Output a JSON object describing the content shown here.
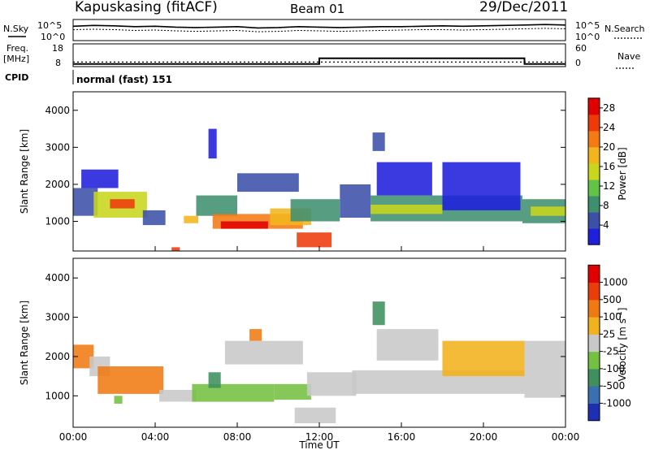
{
  "header": {
    "station": "Kapuskasing (fitACF)",
    "beam": "Beam 01",
    "date": "29/Dec/2011"
  },
  "aux": {
    "nsky_label": "N.Sky",
    "nsearch_label": "N.Search",
    "noise_ticks": [
      "10^5",
      "10^0"
    ],
    "freq_label_1": "Freq.",
    "freq_label_2": "[MHz]",
    "freq_ticks": [
      "18",
      "8"
    ],
    "nave_label": "Nave",
    "nave_ticks": [
      "60",
      "0"
    ],
    "cpid_label": "CPID",
    "cpid_value": "normal (fast) 151"
  },
  "colors": {
    "power": [
      "#1f1fdc",
      "#3c50a8",
      "#3f8f6f",
      "#62c447",
      "#c8d61e",
      "#f2b51d",
      "#f47a14",
      "#ee3a0b",
      "#e00000"
    ],
    "velocity": [
      "#1f2fb4",
      "#3a6fb0",
      "#3f8f5f",
      "#74c040",
      "#c8c8c8",
      "#f2b21e",
      "#f07a12",
      "#ea3d0b",
      "#e00000"
    ]
  },
  "chart_data": [
    {
      "type": "line",
      "panel": "noise",
      "series": [
        {
          "name": "N.Sky",
          "y_log10": [
            3.4,
            3.6,
            3.5,
            3.3,
            3.4,
            3.2,
            3.1,
            3.2,
            3.3,
            3.0,
            3.1,
            3.3,
            3.2,
            3.1,
            3.2,
            3.3,
            3.3,
            3.4,
            3.5,
            3.4,
            3.5,
            3.6,
            3.7,
            3.8,
            3.7
          ]
        },
        {
          "name": "N.Search",
          "y_log10": [
            2.6,
            2.7,
            2.6,
            2.4,
            2.5,
            2.3,
            2.2,
            2.3,
            2.4,
            2.1,
            2.2,
            2.4,
            2.3,
            2.2,
            2.3,
            2.4,
            2.5,
            2.6,
            2.6,
            2.5,
            2.6,
            2.7,
            2.8,
            2.9,
            2.8
          ]
        }
      ],
      "ylim": [
        0,
        5
      ],
      "yticks": [
        "10^5",
        "10^0"
      ]
    },
    {
      "type": "line",
      "panel": "frequency_nave",
      "freq_mhz": {
        "ylim": [
          8,
          18
        ],
        "ticks": [
          "18",
          "8"
        ],
        "value": 10
      },
      "nave": {
        "ylim": [
          0,
          60
        ],
        "ticks": [
          "60",
          "0"
        ],
        "steps": [
          {
            "from_hour": 0,
            "to_hour": 12,
            "value": 7
          },
          {
            "from_hour": 12,
            "to_hour": 22,
            "value": 22
          },
          {
            "from_hour": 22,
            "to_hour": 24,
            "value": 7
          }
        ]
      }
    },
    {
      "type": "heatmap",
      "panel": "power",
      "colorbar_label": "Power [dB]",
      "colorbar_ticks": [
        "4",
        "8",
        "12",
        "16",
        "20",
        "24",
        "28"
      ],
      "zlim": [
        0,
        30
      ],
      "ylabel": "Slant Range [km]",
      "yticks": [
        "1000",
        "2000",
        "3000",
        "4000"
      ],
      "ylim": [
        200,
        4500
      ],
      "xlim": [
        0,
        24
      ],
      "regions": [
        {
          "t0": 0.0,
          "t1": 1.2,
          "r0": 1150,
          "r1": 1900,
          "level": 1
        },
        {
          "t0": 1.0,
          "t1": 3.6,
          "r0": 1100,
          "r1": 1800,
          "level": 4
        },
        {
          "t0": 1.8,
          "t1": 3.0,
          "r0": 1350,
          "r1": 1600,
          "level": 7
        },
        {
          "t0": 0.4,
          "t1": 2.2,
          "r0": 1900,
          "r1": 2400,
          "level": 0
        },
        {
          "t0": 3.4,
          "t1": 4.5,
          "r0": 900,
          "r1": 1300,
          "level": 1
        },
        {
          "t0": 5.4,
          "t1": 6.1,
          "r0": 950,
          "r1": 1150,
          "level": 5
        },
        {
          "t0": 6.0,
          "t1": 8.0,
          "r0": 1150,
          "r1": 1700,
          "level": 2
        },
        {
          "t0": 6.8,
          "t1": 11.2,
          "r0": 800,
          "r1": 1200,
          "level": 6
        },
        {
          "t0": 7.2,
          "t1": 9.5,
          "r0": 800,
          "r1": 1000,
          "level": 8
        },
        {
          "t0": 9.6,
          "t1": 11.6,
          "r0": 900,
          "r1": 1350,
          "level": 5
        },
        {
          "t0": 10.9,
          "t1": 12.6,
          "r0": 300,
          "r1": 700,
          "level": 7
        },
        {
          "t0": 8.0,
          "t1": 11.0,
          "r0": 1800,
          "r1": 2300,
          "level": 1
        },
        {
          "t0": 6.6,
          "t1": 7.0,
          "r0": 2700,
          "r1": 3500,
          "level": 0
        },
        {
          "t0": 10.6,
          "t1": 13.0,
          "r0": 1000,
          "r1": 1600,
          "level": 2
        },
        {
          "t0": 13.0,
          "t1": 14.5,
          "r0": 1100,
          "r1": 2000,
          "level": 1
        },
        {
          "t0": 14.5,
          "t1": 21.9,
          "r0": 1000,
          "r1": 1700,
          "level": 2
        },
        {
          "t0": 14.5,
          "t1": 18.0,
          "r0": 1200,
          "r1": 1450,
          "level": 4
        },
        {
          "t0": 14.8,
          "t1": 17.5,
          "r0": 1700,
          "r1": 2600,
          "level": 0
        },
        {
          "t0": 18.0,
          "t1": 21.8,
          "r0": 1300,
          "r1": 2600,
          "level": 0
        },
        {
          "t0": 21.9,
          "t1": 24.0,
          "r0": 950,
          "r1": 1600,
          "level": 2
        },
        {
          "t0": 22.3,
          "t1": 24.0,
          "r0": 1150,
          "r1": 1400,
          "level": 4
        },
        {
          "t0": 14.6,
          "t1": 15.2,
          "r0": 2900,
          "r1": 3400,
          "level": 1
        },
        {
          "t0": 4.8,
          "t1": 5.2,
          "r0": 200,
          "r1": 300,
          "level": 7
        }
      ]
    },
    {
      "type": "heatmap",
      "panel": "velocity",
      "colorbar_label": "Velocity [m s^-1]",
      "colorbar_ticks": [
        "1000",
        "500",
        "100",
        "25",
        "-25",
        "-100",
        "-500",
        "-1000"
      ],
      "zlim": [
        -1000,
        1000
      ],
      "ylabel": "Slant Range [km]",
      "yticks": [
        "1000",
        "2000",
        "3000",
        "4000"
      ],
      "ylim": [
        200,
        4500
      ],
      "xlim": [
        0,
        24
      ],
      "xlabel": "Time UT",
      "xticks": [
        "00:00",
        "04:00",
        "08:00",
        "12:00",
        "16:00",
        "20:00",
        "00:00"
      ],
      "regions": [
        {
          "t0": 0.0,
          "t1": 1.0,
          "r0": 1700,
          "r1": 2300,
          "level": 6
        },
        {
          "t0": 0.8,
          "t1": 1.8,
          "r0": 1500,
          "r1": 2000,
          "level": 4
        },
        {
          "t0": 1.2,
          "t1": 4.4,
          "r0": 1050,
          "r1": 1750,
          "level": 6
        },
        {
          "t0": 4.2,
          "t1": 6.0,
          "r0": 850,
          "r1": 1150,
          "level": 4
        },
        {
          "t0": 5.8,
          "t1": 9.8,
          "r0": 850,
          "r1": 1300,
          "level": 3
        },
        {
          "t0": 9.8,
          "t1": 11.6,
          "r0": 900,
          "r1": 1300,
          "level": 3
        },
        {
          "t0": 6.6,
          "t1": 7.2,
          "r0": 1200,
          "r1": 1600,
          "level": 2
        },
        {
          "t0": 7.4,
          "t1": 11.2,
          "r0": 1800,
          "r1": 2400,
          "level": 4
        },
        {
          "t0": 8.6,
          "t1": 9.2,
          "r0": 2400,
          "r1": 2700,
          "level": 6
        },
        {
          "t0": 10.8,
          "t1": 12.8,
          "r0": 300,
          "r1": 700,
          "level": 4
        },
        {
          "t0": 11.4,
          "t1": 13.8,
          "r0": 1000,
          "r1": 1600,
          "level": 4
        },
        {
          "t0": 13.6,
          "t1": 22.0,
          "r0": 1050,
          "r1": 1650,
          "level": 4
        },
        {
          "t0": 14.8,
          "t1": 17.8,
          "r0": 1900,
          "r1": 2700,
          "level": 4
        },
        {
          "t0": 18.0,
          "t1": 22.0,
          "r0": 1500,
          "r1": 2400,
          "level": 5
        },
        {
          "t0": 22.0,
          "t1": 24.0,
          "r0": 950,
          "r1": 2400,
          "level": 4
        },
        {
          "t0": 14.6,
          "t1": 15.2,
          "r0": 2800,
          "r1": 3400,
          "level": 2
        },
        {
          "t0": 2.0,
          "t1": 2.4,
          "r0": 800,
          "r1": 1000,
          "level": 3
        }
      ]
    }
  ]
}
